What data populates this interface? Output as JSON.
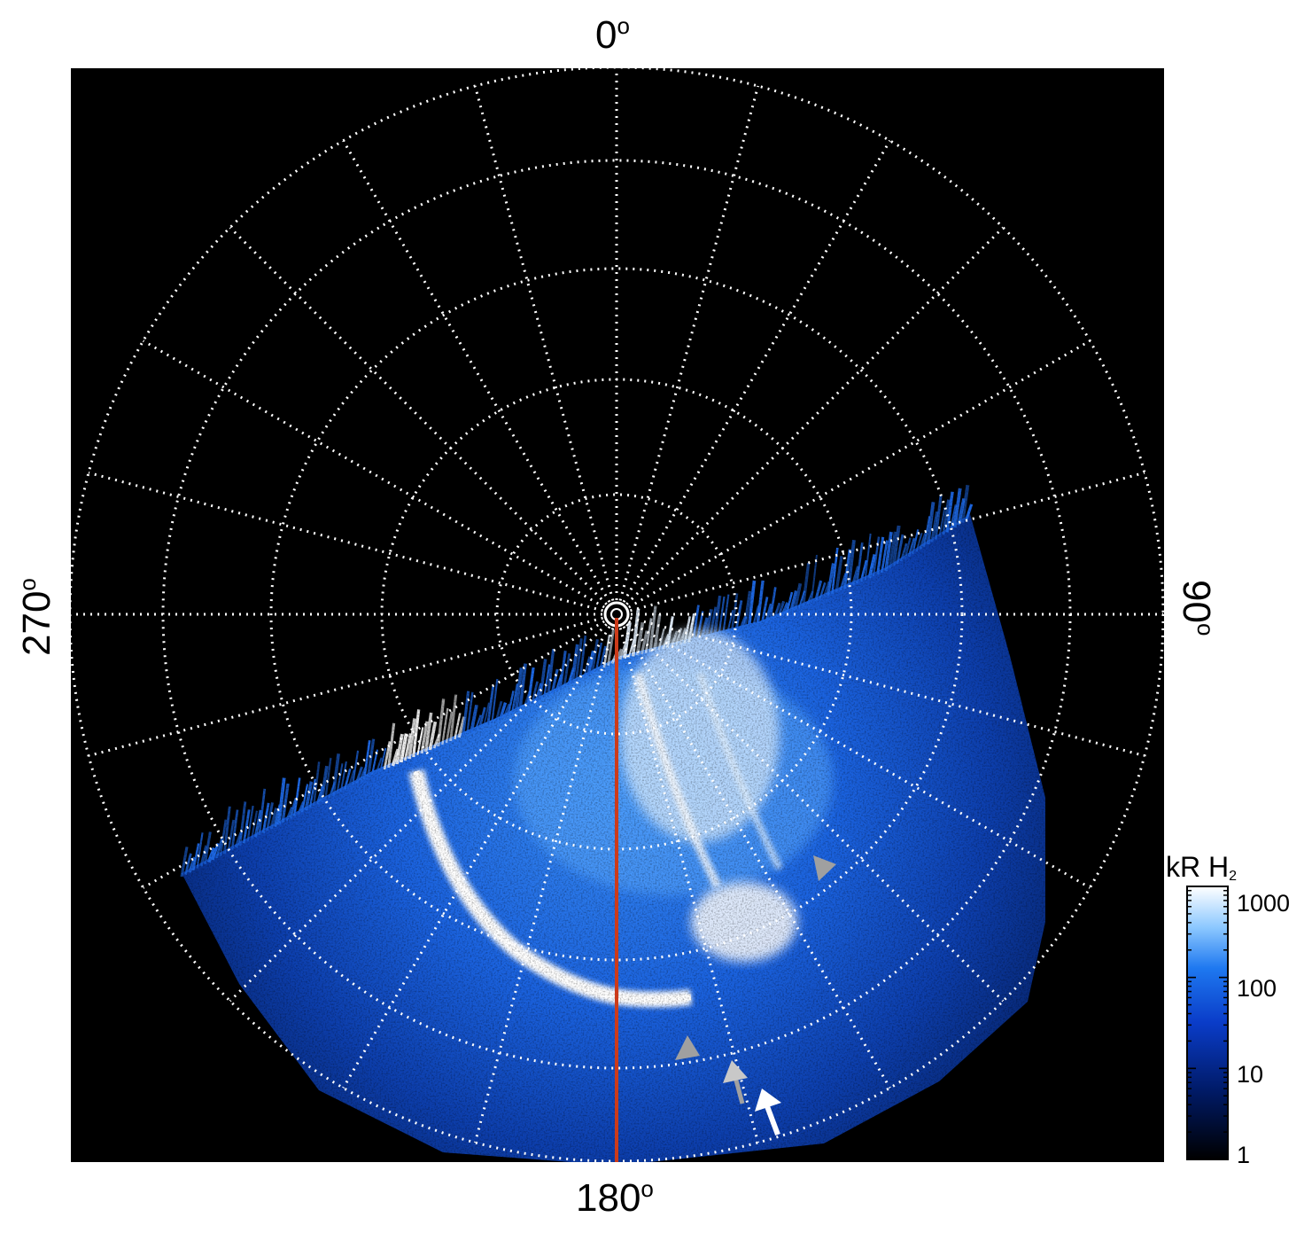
{
  "axis_labels": {
    "top": "0",
    "bottom": "180",
    "left": "270",
    "right": "90",
    "degree_symbol": "o"
  },
  "colorbar": {
    "title": "kR H",
    "title_subscript": "2",
    "ticks": [
      "1000",
      "100",
      "10",
      "1"
    ],
    "scale": "log",
    "colors": [
      "#000000",
      "#001a66",
      "#0a3cc8",
      "#1e78f0",
      "#8cc8ff",
      "#ffffff"
    ]
  },
  "colors": {
    "background": "#000000",
    "grid": "#ffffff",
    "meridian_line": "#cc3b1a",
    "arrow_gray": "#a0a0a0",
    "arrow_white": "#ffffff"
  },
  "markers": [
    "grey-arrowhead",
    "grey-arrowhead",
    "grey-arrow",
    "white-arrow"
  ]
}
